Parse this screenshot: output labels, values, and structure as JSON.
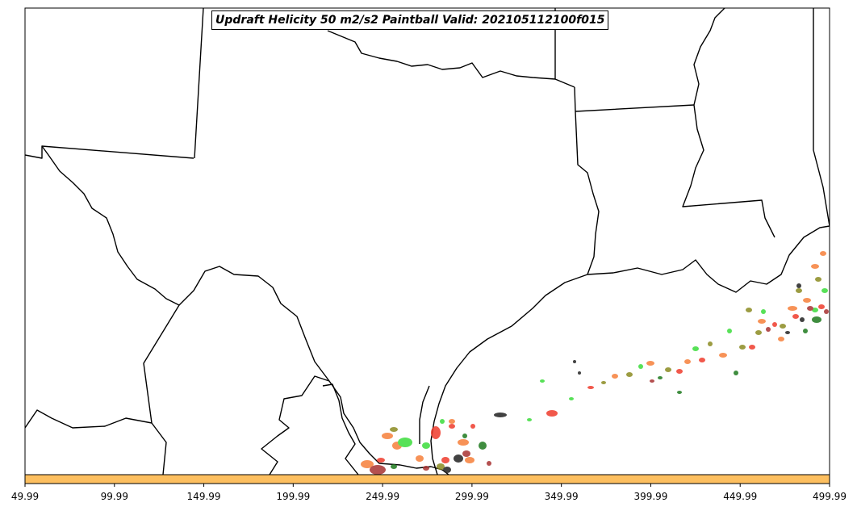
{
  "title": "Updraft Helicity 50 m2/s2 Paintball Valid: 202105112100f015",
  "colorbar": {
    "fill_color": "#fdbf5f",
    "ticks": [
      "49.99",
      "99.99",
      "149.99",
      "199.99",
      "249.99",
      "299.99",
      "349.99",
      "399.99",
      "449.99",
      "499.99"
    ]
  },
  "paintball_colors": [
    "#ef3b2c",
    "#f6803a",
    "#3bdc3b",
    "#1e7a1e",
    "#8b8b22",
    "#a83232",
    "#222222"
  ],
  "coastline_color": "#000000"
}
